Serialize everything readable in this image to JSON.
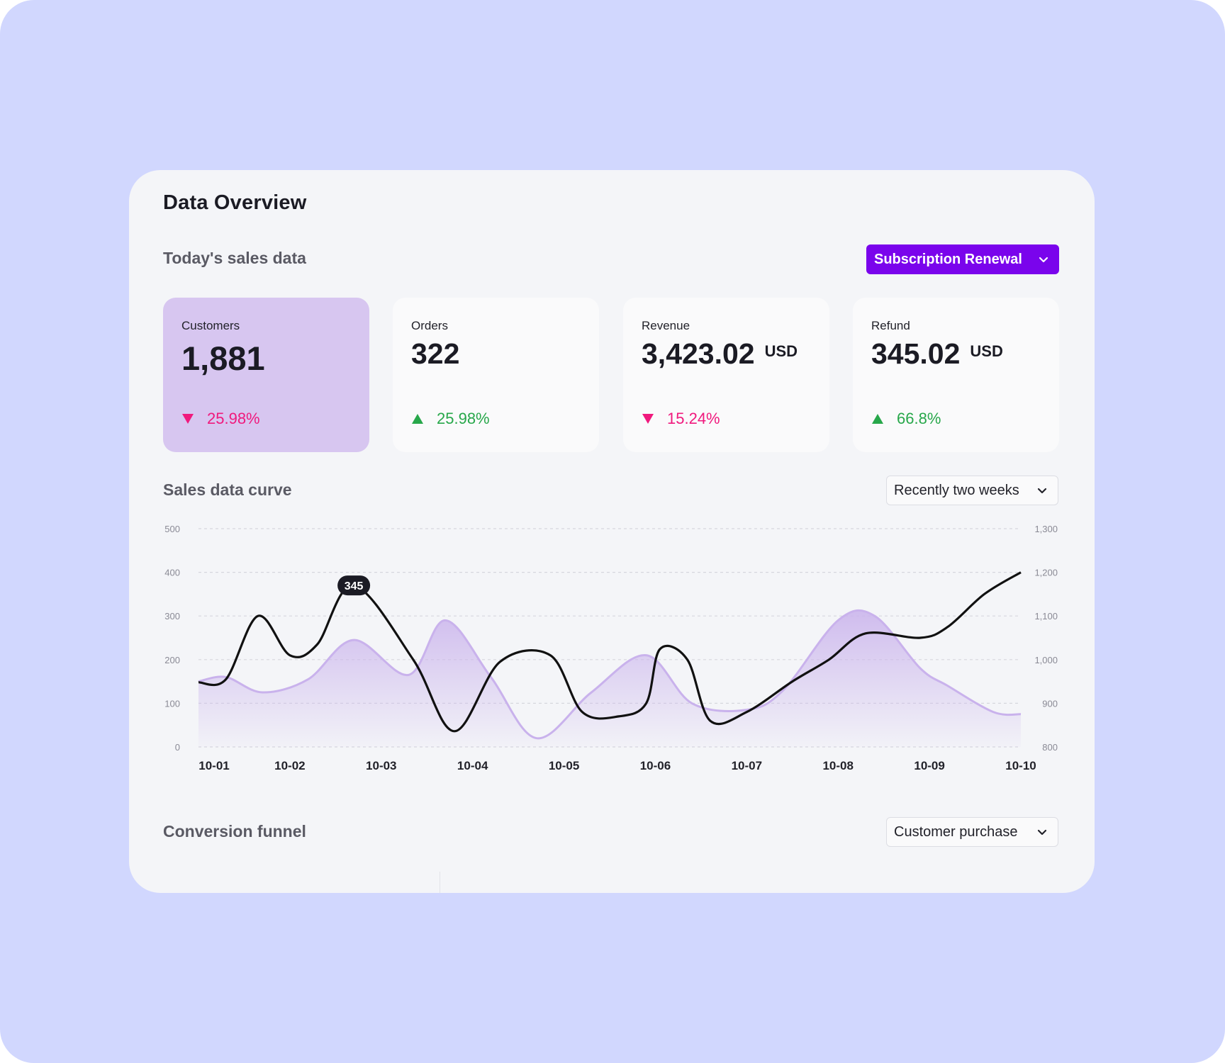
{
  "page": {
    "title": "Data Overview",
    "sales_section_title": "Today's sales data",
    "subscription_dropdown": "Subscription Renewal",
    "curve_section_title": "Sales data curve",
    "period_dropdown": "Recently two weeks",
    "funnel_section_title": "Conversion funnel",
    "funnel_dropdown": "Customer purchase"
  },
  "cards": [
    {
      "label": "Customers",
      "value": "1,881",
      "unit": "",
      "change": "25.98%",
      "direction": "down",
      "active": true
    },
    {
      "label": "Orders",
      "value": "322",
      "unit": "",
      "change": "25.98%",
      "direction": "up",
      "active": false
    },
    {
      "label": "Revenue",
      "value": "3,423.02",
      "unit": "USD",
      "change": "15.24%",
      "direction": "down",
      "active": false
    },
    {
      "label": "Refund",
      "value": "345.02",
      "unit": "USD",
      "change": "66.8%",
      "direction": "up",
      "active": false
    }
  ],
  "colors": {
    "accent": "#7a04ec",
    "up": "#27a74a",
    "down": "#f0197d",
    "active_card": "#d7c6f0",
    "area": "#c9b2ec",
    "line": "#111111"
  },
  "chart_data": {
    "type": "line",
    "categories": [
      "10-01",
      "10-02",
      "10-03",
      "10-04",
      "10-05",
      "10-06",
      "10-07",
      "10-08",
      "10-09",
      "10-10"
    ],
    "ylim_left": [
      0,
      500
    ],
    "ylim_right": [
      800,
      1300
    ],
    "yticks_left": [
      "500",
      "400",
      "300",
      "200",
      "100",
      "0"
    ],
    "yticks_right": [
      "1,300",
      "1,200",
      "1,100",
      "1,000",
      "900",
      "800"
    ],
    "grid": true,
    "annotation": {
      "text": "345"
    },
    "series": [
      {
        "style": "area",
        "axis": "left",
        "x": [
          0,
          0.3,
          0.7,
          1.2,
          1.7,
          2.3,
          2.7,
          3.2,
          3.7,
          4.3,
          4.9,
          5.4,
          6.0,
          6.4,
          7.0,
          7.4,
          7.9,
          8.2,
          8.7,
          9.0
        ],
        "y": [
          150,
          160,
          125,
          155,
          245,
          165,
          290,
          160,
          20,
          125,
          210,
          100,
          85,
          130,
          290,
          300,
          180,
          140,
          80,
          75
        ]
      },
      {
        "style": "line",
        "axis": "right",
        "x": [
          0,
          0.3,
          0.65,
          1.0,
          1.3,
          1.7,
          2.35,
          2.8,
          3.3,
          3.85,
          4.2,
          4.6,
          4.9,
          5.05,
          5.35,
          5.6,
          6.0,
          6.5,
          6.9,
          7.3,
          7.9,
          8.2,
          8.6,
          9.0
        ],
        "y": [
          948,
          955,
          1100,
          1010,
          1035,
          1170,
          1000,
          836,
          995,
          1010,
          880,
          870,
          900,
          1024,
          1000,
          860,
          880,
          950,
          1000,
          1060,
          1050,
          1075,
          1150,
          1200
        ]
      }
    ]
  }
}
